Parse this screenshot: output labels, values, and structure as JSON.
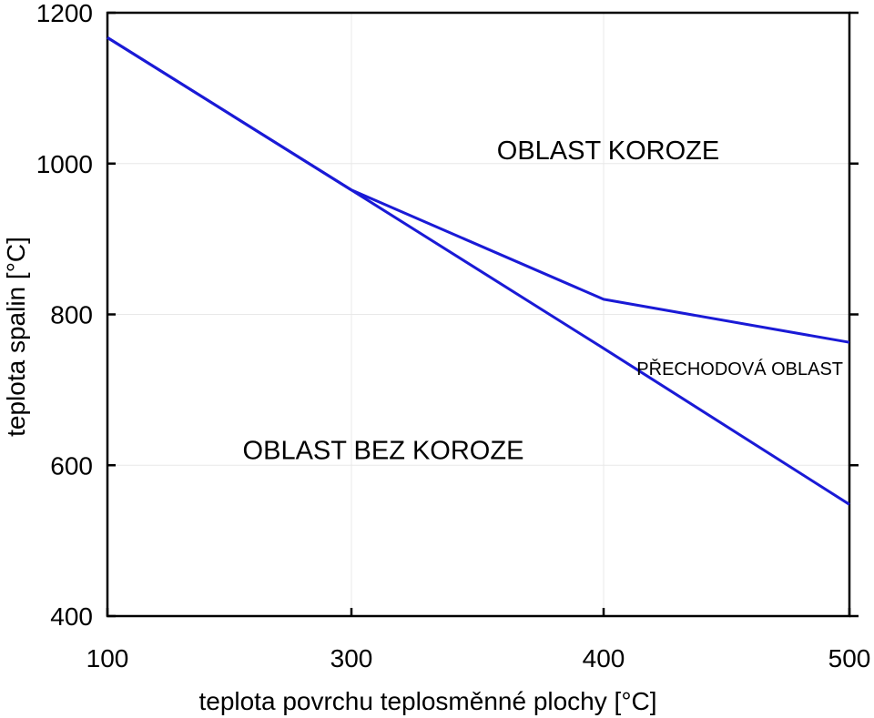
{
  "chart_data": {
    "type": "line",
    "title": "",
    "xlabel": "teplota povrchu teplosměnné plochy [°C]",
    "ylabel": "teplota spalin [°C]",
    "xlim": [
      100,
      500
    ],
    "ylim": [
      400,
      1200
    ],
    "x_tick_values": [
      100,
      300,
      400,
      500
    ],
    "x_tick_labels": [
      "100",
      "300",
      "400",
      "500"
    ],
    "y_tick_values": [
      400,
      600,
      800,
      1000,
      1200
    ],
    "y_tick_labels": [
      "400",
      "600",
      "800",
      "1000",
      "1200"
    ],
    "grid": true,
    "line_color": "#1a1ad6",
    "series": [
      {
        "x": [
          100,
          300,
          400,
          500
        ],
        "y": [
          1167,
          965,
          820,
          763
        ]
      },
      {
        "x": [
          100,
          300,
          400,
          500
        ],
        "y": [
          1167,
          965,
          755,
          548
        ]
      }
    ],
    "annotations": [
      {
        "text": "OBLAST KOROZE",
        "x": 360,
        "y": 1018
      },
      {
        "text": "PŘECHODOVÁ OBLAST",
        "x": 415,
        "y": 732
      },
      {
        "text": "OBLAST BEZ KOROZE",
        "x": 255,
        "y": 620
      }
    ]
  }
}
